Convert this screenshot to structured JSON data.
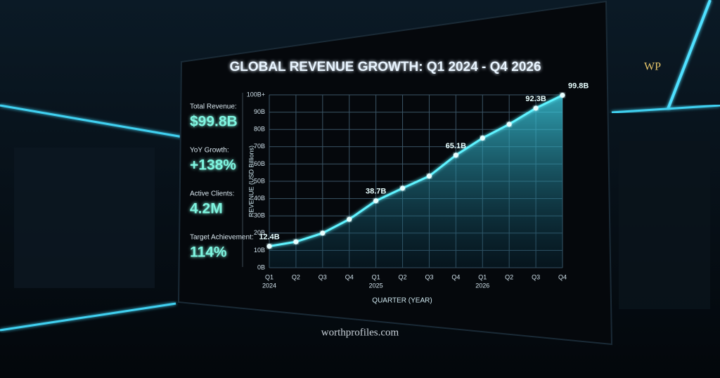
{
  "chart_data": {
    "type": "line",
    "title": "GLOBAL REVENUE GROWTH: Q1 2024 - Q4 2026",
    "x_label": "QUARTER (YEAR)",
    "y_label": "REVENUE (USD Billions)",
    "categories": [
      "Q1",
      "Q2",
      "Q3",
      "Q4",
      "Q1",
      "Q2",
      "Q3",
      "Q4",
      "Q1",
      "Q2",
      "Q3",
      "Q4"
    ],
    "years": [
      "2024",
      null,
      null,
      null,
      "2025",
      null,
      null,
      null,
      "2026",
      null,
      null,
      null
    ],
    "values": [
      12.4,
      15,
      20,
      28,
      38.7,
      46,
      53,
      65.1,
      75,
      83,
      92.3,
      99.8
    ],
    "value_labels": [
      "12.4B",
      null,
      null,
      null,
      "38.7B",
      null,
      null,
      "65.1B",
      null,
      null,
      "92.3B",
      "99.8B"
    ],
    "color": "#5ff3ff",
    "ylim": [
      0,
      100
    ],
    "yticks": [
      {
        "value": 0,
        "label": "0B"
      },
      {
        "value": 10,
        "label": "10B"
      },
      {
        "value": 20,
        "label": "20B"
      },
      {
        "value": 30,
        "label": "30B"
      },
      {
        "value": 40,
        "label": "40B"
      },
      {
        "value": 50,
        "label": "50B"
      },
      {
        "value": 60,
        "label": "60B"
      },
      {
        "value": 70,
        "label": "70B"
      },
      {
        "value": 80,
        "label": "80B"
      },
      {
        "value": 90,
        "label": "90B"
      },
      {
        "value": 100,
        "label": "100B+"
      }
    ],
    "grid": true
  },
  "kpis": [
    {
      "label": "Total Revenue:",
      "value": "$99.8B"
    },
    {
      "label": "YoY Growth:",
      "value": "+138%"
    },
    {
      "label": "Active Clients:",
      "value": "4.2M"
    },
    {
      "label": "Target Achievement:",
      "value": "114%"
    }
  ],
  "logo": "WP",
  "watermark": "worthprofiles.com"
}
